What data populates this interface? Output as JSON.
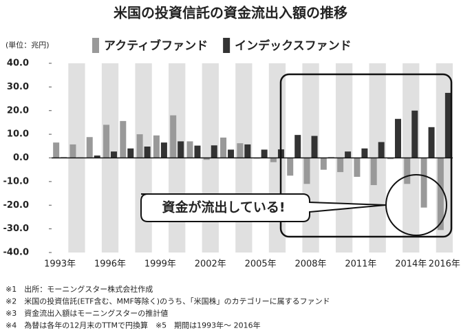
{
  "chart_data": {
    "type": "bar",
    "title": "米国の投資信託の資金流出入額の推移",
    "unit_label": "(単位：兆円)",
    "categories": [
      "1993年",
      null,
      null,
      "1996年",
      null,
      null,
      "1999年",
      null,
      null,
      "2002年",
      null,
      null,
      "2005年",
      null,
      null,
      "2008年",
      null,
      null,
      "2011年",
      null,
      null,
      "2014年",
      null,
      "2016年"
    ],
    "series": [
      {
        "name": "アクティブファンド",
        "color": "#999999",
        "values": [
          6.5,
          5.7,
          8.8,
          14.0,
          15.6,
          10.0,
          9.5,
          18.0,
          7.0,
          -0.8,
          8.6,
          6.2,
          -0.3,
          -1.8,
          -7.5,
          -11.0,
          -5.0,
          -6.0,
          -8.0,
          -11.5,
          -0.5,
          -11.0,
          -21.0,
          -30.5
        ]
      },
      {
        "name": "インデックスファンド",
        "color": "#333333",
        "values": [
          0.3,
          0.2,
          1.0,
          2.7,
          4.0,
          4.8,
          6.5,
          7.0,
          5.2,
          5.3,
          3.5,
          5.7,
          3.5,
          3.6,
          9.7,
          9.3,
          0.3,
          2.7,
          4.0,
          6.7,
          16.5,
          20.0,
          13.0,
          27.5
        ]
      }
    ],
    "ylim": [
      -40,
      40
    ],
    "yticks": [
      {
        "value": 40,
        "label": "40.0"
      },
      {
        "value": 30,
        "label": "30.0"
      },
      {
        "value": 20,
        "label": "20.0"
      },
      {
        "value": 10,
        "label": "10.0"
      },
      {
        "value": 0,
        "label": "0.0"
      },
      {
        "value": -10,
        "label": "-10.0"
      },
      {
        "value": -20,
        "label": "-20.0"
      },
      {
        "value": -30,
        "label": "-30.0"
      },
      {
        "value": -40,
        "label": "-40.0"
      }
    ],
    "annotation": "資金が流出している!",
    "footnotes": [
      "※1　出所：モーニングスター株式会社作成",
      "※2　米国の投資信託(ETF含む、MMF等除く)のうち、「米国株」のカテゴリーに属するファンド",
      "※3　資金流出入額はモーニングスターの推計値",
      "※4　為替は各年の12月末のTTMで円換算　※5　期間は1993年～ 2016年"
    ]
  }
}
